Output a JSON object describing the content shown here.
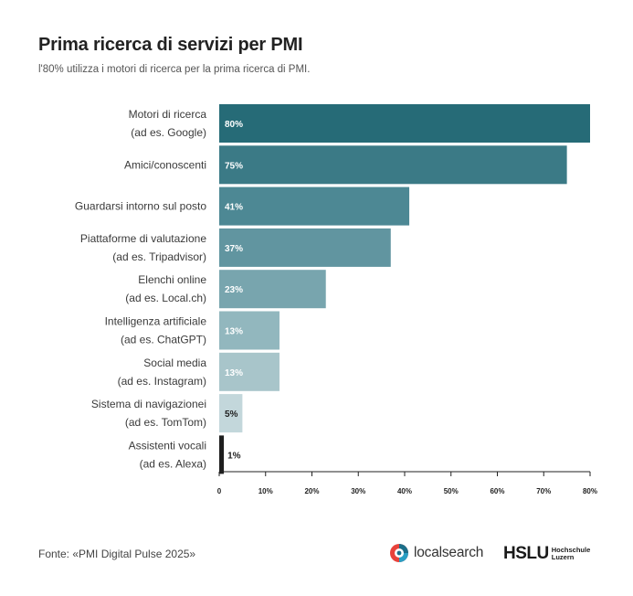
{
  "header": {
    "title": "Prima ricerca di servizi per PMI",
    "subtitle": "l'80% utilizza i motori di ricerca per la prima ricerca di PMI."
  },
  "footer": {
    "source": "Fonte: «PMI Digital Pulse 2025»",
    "logo_localsearch": "localsearch",
    "logo_hslu": "HSLU",
    "logo_hslu_sub_1": "Hochschule",
    "logo_hslu_sub_2": "Luzern"
  },
  "chart_data": {
    "type": "bar",
    "orientation": "horizontal",
    "categories": [
      [
        "Motori di ricerca",
        "(ad es. Google)"
      ],
      [
        "Amici/conoscenti"
      ],
      [
        "Guardarsi intorno sul posto"
      ],
      [
        "Piattaforme di valutazione",
        "(ad es. Tripadvisor)"
      ],
      [
        "Elenchi online",
        "(ad es. Local.ch)"
      ],
      [
        "Intelligenza artificiale",
        "(ad es. ChatGPT)"
      ],
      [
        "Social media",
        "(ad es. Instagram)"
      ],
      [
        "Sistema di navigazionei",
        "(ad es. TomTom)"
      ],
      [
        "Assistenti vocali",
        "(ad es. Alexa)"
      ]
    ],
    "values": [
      80,
      75,
      41,
      37,
      23,
      13,
      13,
      5,
      1
    ],
    "value_labels": [
      "80%",
      "75%",
      "41%",
      "37%",
      "23%",
      "13%",
      "13%",
      "5%",
      "1%"
    ],
    "bar_colors": [
      "#266b77",
      "#3b7a86",
      "#4d8894",
      "#6195a0",
      "#78a5ae",
      "#92b7be",
      "#a8c5ca",
      "#c3d7db",
      "#1e1e1e"
    ],
    "xlim": [
      0,
      80
    ],
    "xticks": [
      "0",
      "10%",
      "20%",
      "30%",
      "40%",
      "50%",
      "60%",
      "70%",
      "80%"
    ],
    "grid": false
  }
}
